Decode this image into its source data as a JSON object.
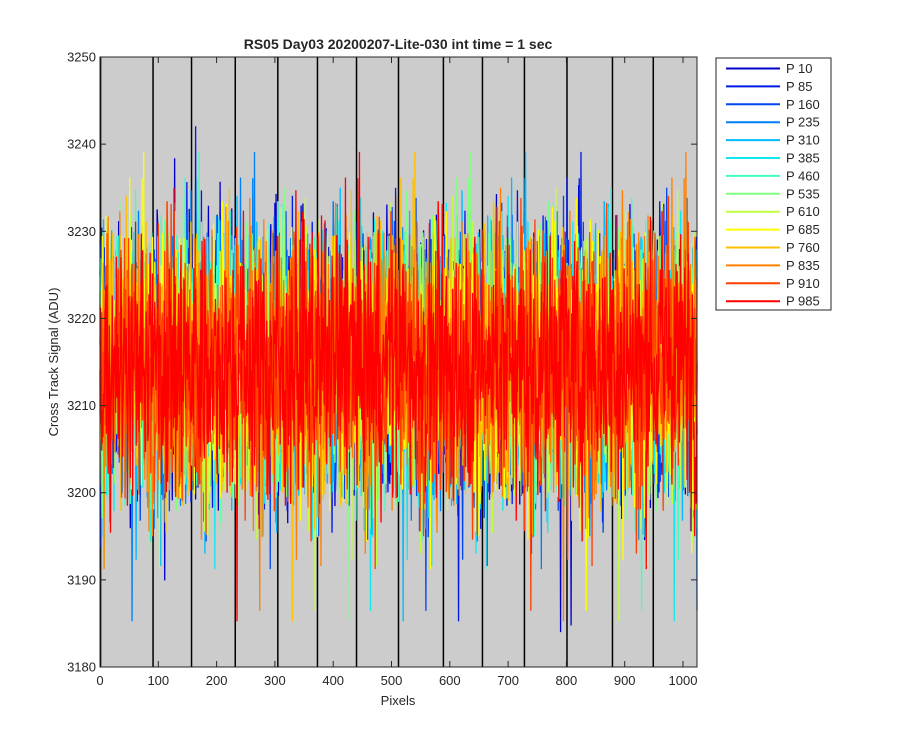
{
  "chart_data": {
    "type": "line",
    "title": "RS05 Day03 20200207-Lite-030 int time = 1 sec",
    "xlabel": "Pixels",
    "ylabel": "Cross Track Signal (ADU)",
    "xlim": [
      0,
      1024
    ],
    "ylim": [
      3180,
      3250
    ],
    "xticks": [
      0,
      100,
      200,
      300,
      400,
      500,
      600,
      700,
      800,
      900,
      1000
    ],
    "yticks": [
      3180,
      3190,
      3200,
      3210,
      3220,
      3230,
      3240,
      3250
    ],
    "vertical_lines_x": [
      1,
      91,
      157,
      232,
      305,
      373,
      440,
      512,
      589,
      656,
      728,
      801,
      879,
      949
    ],
    "legend_position": "outside-right",
    "noise_model": {
      "mean": 3215,
      "typical_range": [
        3196,
        3232
      ],
      "extreme_range": [
        3184,
        3245
      ]
    },
    "series": [
      {
        "name": "P 10",
        "color": "#0000c8"
      },
      {
        "name": "P 85",
        "color": "#0019e6"
      },
      {
        "name": "P 160",
        "color": "#0046f0"
      },
      {
        "name": "P 235",
        "color": "#0080f8"
      },
      {
        "name": "P 310",
        "color": "#00bbff"
      },
      {
        "name": "P 385",
        "color": "#10e8f0"
      },
      {
        "name": "P 460",
        "color": "#40ffc0"
      },
      {
        "name": "P 535",
        "color": "#80ff80"
      },
      {
        "name": "P 610",
        "color": "#c0ff40"
      },
      {
        "name": "P 685",
        "color": "#ffff00"
      },
      {
        "name": "P 760",
        "color": "#ffc000"
      },
      {
        "name": "P 835",
        "color": "#ff8000"
      },
      {
        "name": "P 910",
        "color": "#ff4000"
      },
      {
        "name": "P 985",
        "color": "#ff0000"
      }
    ]
  }
}
